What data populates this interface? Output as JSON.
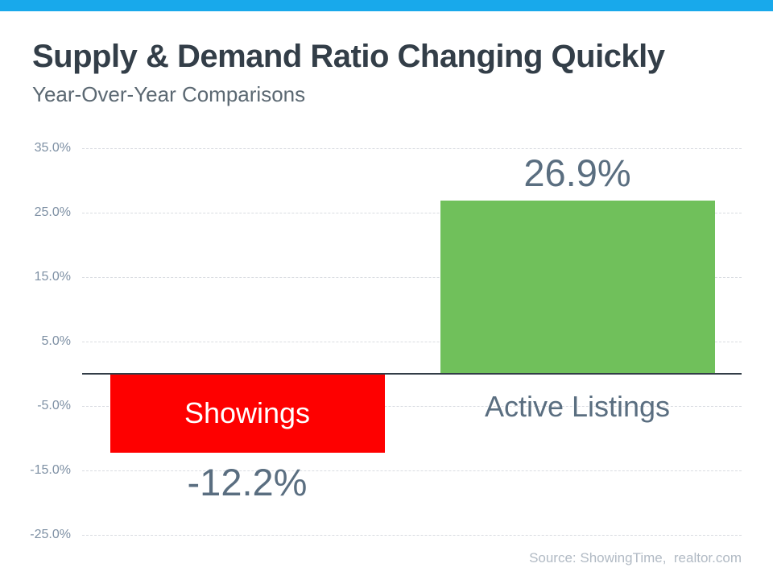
{
  "header": {
    "bar_color": "#18a9eb"
  },
  "chart_data": {
    "type": "bar",
    "title": "Supply & Demand Ratio Changing Quickly",
    "subtitle": "Year-Over-Year Comparisons",
    "categories": [
      "Showings",
      "Active Listings"
    ],
    "values": [
      -12.2,
      26.9
    ],
    "value_labels": [
      "-12.2%",
      "26.9%"
    ],
    "bar_colors": [
      "#fe0000",
      "#70c05b"
    ],
    "yticks": [
      {
        "label": "35.0%",
        "value": 35
      },
      {
        "label": "25.0%",
        "value": 25
      },
      {
        "label": "15.0%",
        "value": 15
      },
      {
        "label": "5.0%",
        "value": 5
      },
      {
        "label": "-5.0%",
        "value": -5
      },
      {
        "label": "-15.0%",
        "value": -15
      },
      {
        "label": "-25.0%",
        "value": -25
      }
    ],
    "ylim": [
      -25,
      35
    ],
    "grid": true,
    "legend_position": "none",
    "xlabel": "",
    "ylabel": ""
  },
  "footer": {
    "source": "Source: ShowingTime,  realtor.com"
  },
  "colors": {
    "title_text": "#333e48",
    "subtitle_text": "#5b6872",
    "tick_text": "#7e90a4",
    "value_text": "#5a6e80",
    "grid_line": "#d9dce1",
    "zero_axis": "#323d47",
    "source_text": "#b1bac4",
    "top_bar": "#18a9eb"
  }
}
